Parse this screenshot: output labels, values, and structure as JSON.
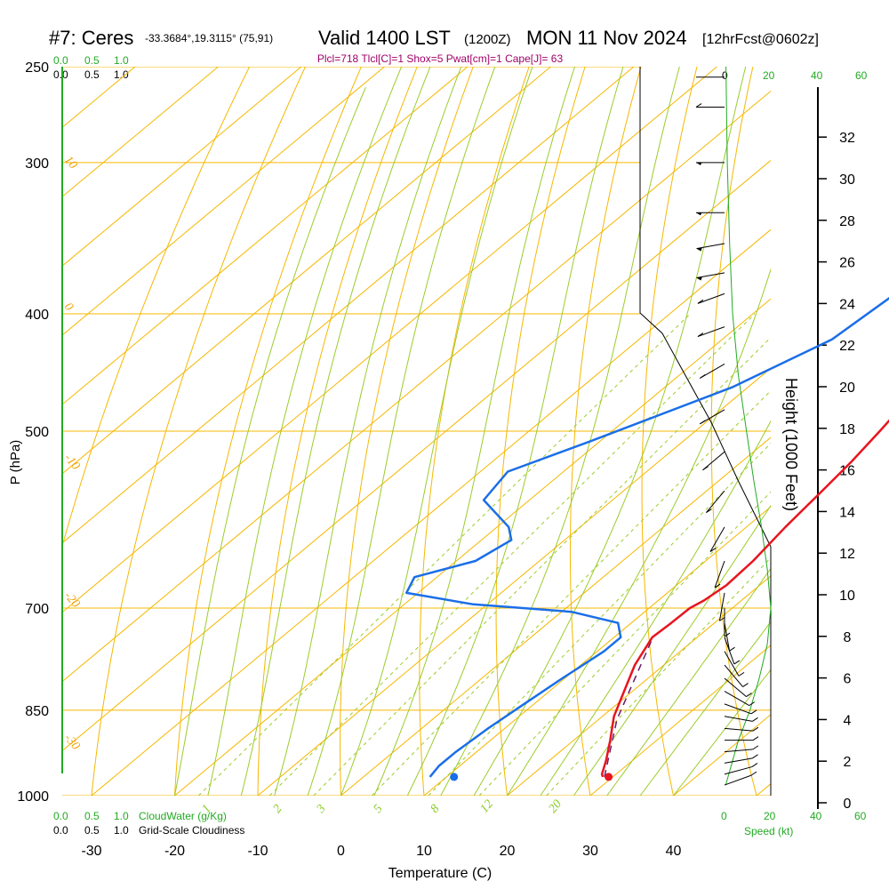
{
  "header": {
    "station": "#7: Ceres",
    "coords": "-33.3684°,19.3115° (75,91)",
    "valid": "Valid 1400 LST",
    "utc": "(1200Z)",
    "date": "MON 11 Nov 2024",
    "forecast": "[12hrFcst@0602z]",
    "indices": "Plcl=718 Tlcl[C]=1 Shox=5 Pwat[cm]=1 Cape[J]= 63"
  },
  "axes": {
    "xlabel": "Temperature (C)",
    "ylabel": "P (hPa)",
    "right_label": "Height (1000 Feet)",
    "speed_label": "Speed (kt)",
    "cloudwater_label": "CloudWater (g/Kg)",
    "cloudiness_label": "Grid-Scale Cloudiness"
  },
  "scales": {
    "cloud_top_green": [
      "0.0",
      "0.5",
      "1.0"
    ],
    "cloud_top_black": [
      "0.0",
      "0.5",
      "1.0"
    ],
    "cloud_bottom_green": [
      "0.0",
      "0.5",
      "1.0"
    ],
    "cloud_bottom_black": [
      "0.0",
      "0.5",
      "1.0"
    ],
    "speed_top_black": [
      "0"
    ],
    "speed_top_green": [
      "20",
      "40",
      "60"
    ],
    "speed_bottom_green": [
      "0",
      "20",
      "40",
      "60"
    ]
  },
  "chart_data": {
    "type": "line",
    "x_ticks": [
      "-30",
      "-20",
      "-10",
      "0",
      "10",
      "20",
      "30",
      "40"
    ],
    "x_tick_values": [
      -30,
      -20,
      -10,
      0,
      10,
      20,
      30,
      40
    ],
    "p_ticks": [
      "250",
      "300",
      "400",
      "500",
      "700",
      "850",
      "1000"
    ],
    "p_tick_values": [
      250,
      300,
      400,
      500,
      700,
      850,
      1000
    ],
    "height_ticks": [
      "0",
      "2",
      "4",
      "6",
      "8",
      "10",
      "12",
      "14",
      "16",
      "18",
      "20",
      "22",
      "24",
      "26",
      "28",
      "30",
      "32"
    ],
    "height_tick_values": [
      0,
      2,
      4,
      6,
      8,
      10,
      12,
      14,
      16,
      18,
      20,
      22,
      24,
      26,
      28,
      30,
      32
    ],
    "temperature": {
      "color": "#e8141e",
      "points": [
        [
          -3.2,
          255
        ],
        [
          -2.6,
          280
        ],
        [
          -0.3,
          300
        ],
        [
          2.5,
          330
        ],
        [
          4.7,
          360
        ],
        [
          6.7,
          390
        ],
        [
          8.4,
          420
        ],
        [
          10.0,
          450
        ],
        [
          11.2,
          475
        ],
        [
          12.2,
          500
        ],
        [
          13.2,
          530
        ],
        [
          13.9,
          560
        ],
        [
          14.7,
          600
        ],
        [
          15.7,
          640
        ],
        [
          16.0,
          670
        ],
        [
          15.5,
          690
        ],
        [
          14.9,
          700
        ],
        [
          14.8,
          720
        ],
        [
          14.6,
          740
        ],
        [
          16.5,
          780
        ],
        [
          19.0,
          820
        ],
        [
          21.4,
          860
        ],
        [
          24.4,
          900
        ],
        [
          26.8,
          935
        ],
        [
          28.3,
          960
        ],
        [
          28.8,
          965
        ]
      ]
    },
    "dewpoint": {
      "color": "#1a6ee8",
      "points": [
        [
          -11.7,
          255
        ],
        [
          -11.4,
          280
        ],
        [
          -9.7,
          300
        ],
        [
          -6.1,
          340
        ],
        [
          -5.4,
          365
        ],
        [
          -5.6,
          380
        ],
        [
          -6.8,
          420
        ],
        [
          -11.9,
          460
        ],
        [
          -21.2,
          510
        ],
        [
          -26.7,
          540
        ],
        [
          -25.5,
          570
        ],
        [
          -18.6,
          600
        ],
        [
          -16.4,
          615
        ],
        [
          -17.7,
          640
        ],
        [
          -22.7,
          660
        ],
        [
          -21.4,
          680
        ],
        [
          -11.7,
          695
        ],
        [
          1.2,
          705
        ],
        [
          8.4,
          720
        ],
        [
          10.8,
          740
        ],
        [
          10.8,
          760
        ],
        [
          9.7,
          800
        ],
        [
          8.8,
          840
        ],
        [
          8.0,
          880
        ],
        [
          7.5,
          920
        ],
        [
          7.5,
          945
        ],
        [
          8.0,
          965
        ]
      ]
    },
    "parcel": {
      "color": "#6a1b6a",
      "points": [
        [
          29.0,
          965
        ],
        [
          22.2,
          865
        ],
        [
          15.0,
          745
        ]
      ]
    },
    "surface_temp": {
      "value": 29.5,
      "pressure": 965,
      "color": "#e8141e"
    },
    "surface_dewpoint": {
      "value": 10.9,
      "pressure": 965,
      "color": "#1a6ee8"
    },
    "isotherm_labels": [
      "0",
      "10",
      "20",
      "30"
    ],
    "isotherm_label_values": [
      0,
      10,
      20,
      30
    ],
    "adiabat_labels": [
      "10",
      "0",
      "-10",
      "-20",
      "-30"
    ],
    "adiabat_label_values": [
      10,
      0,
      -10,
      -20,
      -30
    ],
    "mixing_ratio_labels": [
      "1",
      "2",
      "3",
      "5",
      "8",
      "12",
      "20"
    ],
    "mixing_ratio_values": [
      1,
      2,
      3,
      5,
      8,
      12,
      20
    ],
    "wind_speed_profile_kt": [
      [
        250,
        0.6
      ],
      [
        300,
        1.2
      ],
      [
        350,
        2.2
      ],
      [
        400,
        3.5
      ],
      [
        450,
        6.0
      ],
      [
        500,
        9.5
      ],
      [
        550,
        12.7
      ],
      [
        600,
        16.0
      ],
      [
        650,
        18.5
      ],
      [
        700,
        20.0
      ],
      [
        750,
        18.5
      ],
      [
        800,
        15.0
      ],
      [
        850,
        11.0
      ],
      [
        900,
        6.0
      ],
      [
        950,
        2.5
      ],
      [
        980,
        0.5
      ]
    ],
    "wind_barbs": [
      [
        255,
        3,
        270
      ],
      [
        270,
        5,
        270
      ],
      [
        300,
        15,
        270
      ],
      [
        330,
        15,
        270
      ],
      [
        350,
        15,
        260
      ],
      [
        370,
        15,
        260
      ],
      [
        385,
        10,
        250
      ],
      [
        410,
        10,
        250
      ],
      [
        440,
        10,
        240
      ],
      [
        480,
        10,
        240
      ],
      [
        520,
        10,
        230
      ],
      [
        560,
        10,
        220
      ],
      [
        600,
        10,
        210
      ],
      [
        640,
        10,
        200
      ],
      [
        680,
        10,
        190
      ],
      [
        700,
        10,
        180
      ],
      [
        720,
        10,
        170
      ],
      [
        740,
        10,
        160
      ],
      [
        760,
        10,
        150
      ],
      [
        780,
        10,
        140
      ],
      [
        800,
        10,
        130
      ],
      [
        820,
        10,
        120
      ],
      [
        840,
        10,
        110
      ],
      [
        860,
        10,
        100
      ],
      [
        880,
        10,
        95
      ],
      [
        900,
        10,
        90
      ],
      [
        920,
        10,
        85
      ],
      [
        940,
        10,
        80
      ],
      [
        960,
        10,
        75
      ],
      [
        980,
        5,
        70
      ]
    ],
    "ylim": [
      250,
      1000
    ],
    "xlim": [
      -30,
      40
    ],
    "legend": "none"
  }
}
